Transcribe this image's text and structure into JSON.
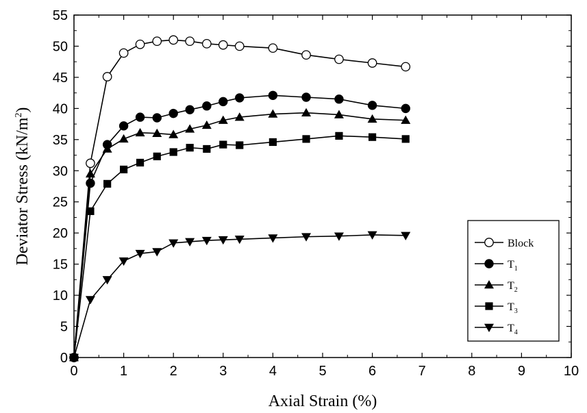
{
  "chart_data": {
    "type": "line",
    "xlabel": "Axial Strain (%)",
    "ylabel": "Deviator Stress (kN/m²)",
    "xlim": [
      0,
      10
    ],
    "ylim": [
      0,
      55
    ],
    "xticks": [
      0,
      1,
      2,
      3,
      4,
      5,
      6,
      7,
      8,
      9,
      10
    ],
    "yticks": [
      0,
      5,
      10,
      15,
      20,
      25,
      30,
      35,
      40,
      45,
      50,
      55
    ],
    "grid": false,
    "legend_position": "bottom-right",
    "series": [
      {
        "name": "Block",
        "marker": "open-circle",
        "x": [
          0,
          0.33,
          0.67,
          1.0,
          1.33,
          1.67,
          2.0,
          2.33,
          2.67,
          3.0,
          3.33,
          4.0,
          4.67,
          5.33,
          6.0,
          6.67
        ],
        "y": [
          0,
          31.2,
          45.1,
          48.9,
          50.3,
          50.8,
          51.0,
          50.8,
          50.4,
          50.2,
          50.0,
          49.7,
          48.6,
          47.9,
          47.3,
          46.7
        ]
      },
      {
        "name": "T1",
        "marker": "filled-circle",
        "x": [
          0,
          0.33,
          0.67,
          1.0,
          1.33,
          1.67,
          2.0,
          2.33,
          2.67,
          3.0,
          3.33,
          4.0,
          4.67,
          5.33,
          6.0,
          6.67
        ],
        "y": [
          0,
          28.0,
          34.2,
          37.2,
          38.6,
          38.5,
          39.2,
          39.8,
          40.4,
          41.1,
          41.7,
          42.1,
          41.8,
          41.5,
          40.5,
          40.0
        ]
      },
      {
        "name": "T2",
        "marker": "triangle-up",
        "x": [
          0,
          0.33,
          0.67,
          1.0,
          1.33,
          1.67,
          2.0,
          2.33,
          2.67,
          3.0,
          3.33,
          4.0,
          4.67,
          5.33,
          6.0,
          6.67
        ],
        "y": [
          0,
          29.5,
          33.5,
          35.1,
          36.1,
          36.0,
          35.8,
          36.7,
          37.3,
          38.1,
          38.6,
          39.1,
          39.3,
          39.0,
          38.3,
          38.1
        ]
      },
      {
        "name": "T3",
        "marker": "filled-square",
        "x": [
          0,
          0.33,
          0.67,
          1.0,
          1.33,
          1.67,
          2.0,
          2.33,
          2.67,
          3.0,
          3.33,
          4.0,
          4.67,
          5.33,
          6.0,
          6.67
        ],
        "y": [
          0,
          23.5,
          27.9,
          30.2,
          31.3,
          32.3,
          33.0,
          33.7,
          33.5,
          34.2,
          34.1,
          34.6,
          35.1,
          35.6,
          35.4,
          35.1
        ]
      },
      {
        "name": "T4",
        "marker": "triangle-down",
        "x": [
          0,
          0.33,
          0.67,
          1.0,
          1.33,
          1.67,
          2.0,
          2.33,
          2.67,
          3.0,
          3.33,
          4.0,
          4.67,
          5.33,
          6.0,
          6.67
        ],
        "y": [
          0,
          9.3,
          12.5,
          15.5,
          16.7,
          17.0,
          18.4,
          18.6,
          18.8,
          18.9,
          19.0,
          19.2,
          19.4,
          19.5,
          19.7,
          19.6
        ]
      }
    ]
  }
}
